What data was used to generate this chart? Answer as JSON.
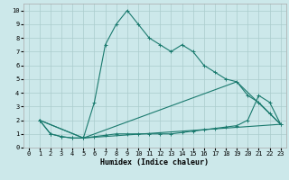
{
  "xlabel": "Humidex (Indice chaleur)",
  "bg_color": "#cce8ea",
  "grid_color": "#aacccc",
  "line_color": "#1a7a6e",
  "xlim": [
    -0.5,
    23.5
  ],
  "ylim": [
    0,
    10.5
  ],
  "xticks": [
    0,
    1,
    2,
    3,
    4,
    5,
    6,
    7,
    8,
    9,
    10,
    11,
    12,
    13,
    14,
    15,
    16,
    17,
    18,
    19,
    20,
    21,
    22,
    23
  ],
  "yticks": [
    0,
    1,
    2,
    3,
    4,
    5,
    6,
    7,
    8,
    9,
    10
  ],
  "series": [
    {
      "x": [
        1,
        2,
        3,
        4,
        5,
        6,
        7,
        8,
        9,
        10,
        11,
        12,
        13,
        14,
        15,
        16,
        17,
        18,
        19,
        20,
        21,
        22,
        23
      ],
      "y": [
        2,
        1,
        0.8,
        0.7,
        0.7,
        3.3,
        7.5,
        9,
        10,
        9,
        8,
        7.5,
        7,
        7.5,
        7,
        6,
        5.5,
        5,
        4.8,
        3.8,
        3.3,
        2.5,
        1.7
      ],
      "marker": true
    },
    {
      "x": [
        1,
        2,
        3,
        4,
        5,
        6,
        7,
        8,
        9,
        10,
        11,
        12,
        13,
        14,
        15,
        16,
        17,
        18,
        19,
        20,
        21,
        22,
        23
      ],
      "y": [
        2,
        1,
        0.8,
        0.7,
        0.7,
        0.8,
        0.9,
        1.0,
        1.0,
        1.0,
        1.0,
        1.0,
        1.0,
        1.1,
        1.2,
        1.3,
        1.4,
        1.5,
        1.6,
        2.0,
        3.8,
        3.3,
        1.7
      ],
      "marker": true
    },
    {
      "x": [
        1,
        5,
        23
      ],
      "y": [
        2,
        0.7,
        1.7
      ],
      "marker": false
    },
    {
      "x": [
        1,
        5,
        19,
        23
      ],
      "y": [
        2,
        0.7,
        4.8,
        1.7
      ],
      "marker": false
    }
  ]
}
